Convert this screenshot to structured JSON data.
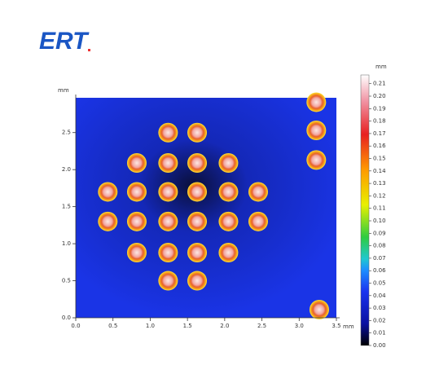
{
  "logo": "ERT",
  "chart_data": {
    "type": "scatter",
    "xlabel": "mm",
    "ylabel": "mm",
    "colorbar_label": "mm",
    "x": [
      1.24,
      1.63,
      0.82,
      1.24,
      1.63,
      2.05,
      0.43,
      0.82,
      1.24,
      1.63,
      2.05,
      2.45,
      0.43,
      0.82,
      1.24,
      1.63,
      2.05,
      2.45,
      0.82,
      1.24,
      1.63,
      2.05,
      1.24,
      1.63,
      3.23,
      3.23,
      3.23,
      3.27
    ],
    "y": [
      2.5,
      2.5,
      2.09,
      2.09,
      2.09,
      2.09,
      1.7,
      1.7,
      1.7,
      1.7,
      1.7,
      1.7,
      1.3,
      1.3,
      1.3,
      1.3,
      1.3,
      1.3,
      0.88,
      0.88,
      0.88,
      0.88,
      0.5,
      0.5,
      2.91,
      2.53,
      2.13,
      0.11
    ],
    "xlim": [
      0,
      3.5
    ],
    "ylim": [
      0,
      2.97
    ],
    "xticks": [
      {
        "value": 0,
        "label": "0.0"
      },
      0.5,
      {
        "value": 1,
        "label": "1.0"
      },
      1.5,
      {
        "value": 2,
        "label": "2.0"
      },
      2.5,
      {
        "value": 3,
        "label": "3.0"
      },
      3.5
    ],
    "yticks": [
      {
        "value": 0,
        "label": "0.0"
      },
      0.5,
      {
        "value": 1,
        "label": "1.0"
      },
      1.5,
      {
        "value": 2,
        "label": "2.0"
      },
      2.5
    ],
    "zlim": [
      0,
      0.217
    ],
    "zticks": [
      {
        "value": 0,
        "label": "0.00"
      },
      0.01,
      0.02,
      0.03,
      0.04,
      0.05,
      0.06,
      0.07,
      0.08,
      0.09,
      {
        "value": 0.1,
        "label": "0.10"
      },
      0.11,
      0.12,
      0.13,
      0.14,
      0.15,
      0.16,
      0.17,
      0.18,
      0.19,
      {
        "value": 0.2,
        "label": "0.20"
      },
      0.21
    ]
  }
}
